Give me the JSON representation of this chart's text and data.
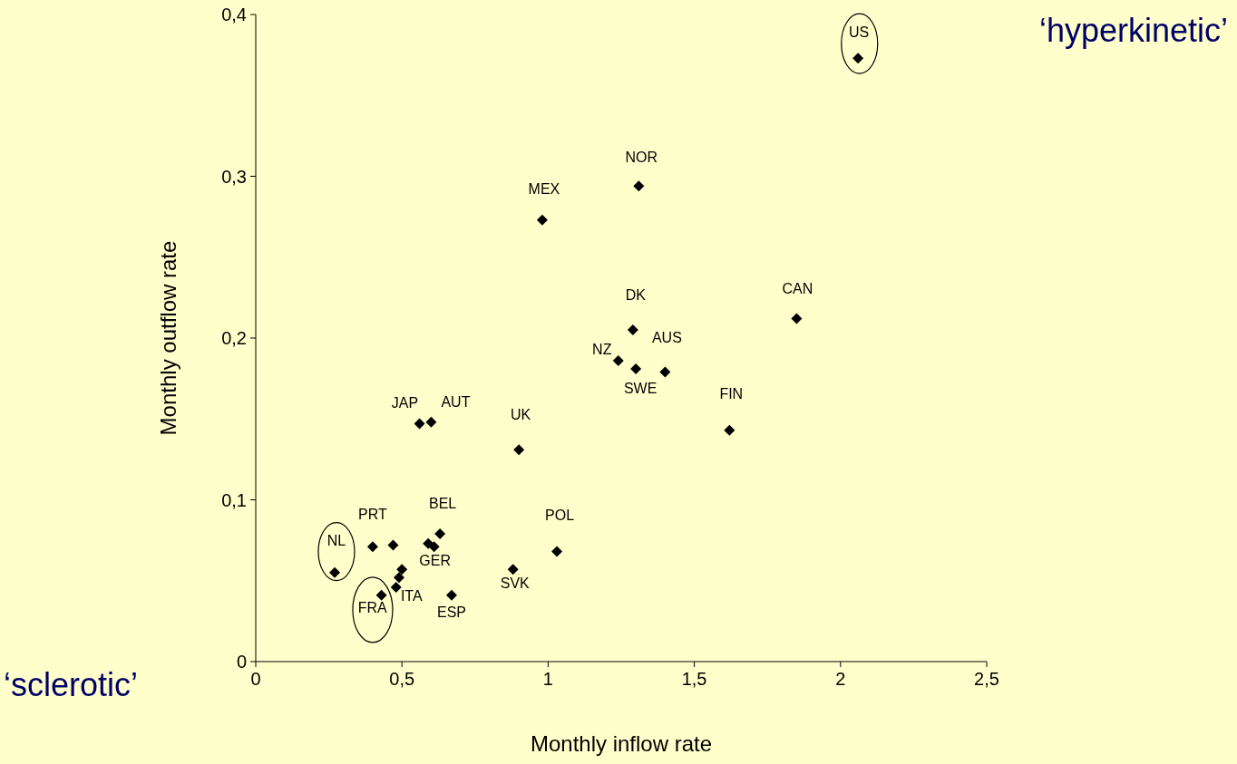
{
  "chart_data": {
    "type": "scatter",
    "xlabel": "Monthly inflow rate",
    "ylabel": "Monthly outflow rate",
    "xlim": [
      0,
      2.5
    ],
    "ylim": [
      0,
      0.4
    ],
    "xticks": [
      0,
      {
        "value": 0.5,
        "label": "0,5"
      },
      1,
      {
        "value": 1.5,
        "label": "1,5"
      },
      2,
      {
        "value": 2.5,
        "label": "2,5"
      }
    ],
    "yticks": [
      0,
      {
        "value": 0.1,
        "label": "0,1"
      },
      {
        "value": 0.2,
        "label": "0,2"
      },
      {
        "value": 0.3,
        "label": "0,3"
      },
      {
        "value": 0.4,
        "label": "0,4"
      }
    ],
    "marker": "diamond",
    "grid": false,
    "series": [
      {
        "color": "#000000",
        "x": [
          2.06,
          1.31,
          0.98,
          1.29,
          1.24,
          1.3,
          1.4,
          1.85,
          1.62,
          0.9,
          0.56,
          0.6,
          0.27,
          0.4,
          0.47,
          0.59,
          0.61,
          0.63,
          0.5,
          0.49,
          0.48,
          0.43,
          0.67,
          0.88,
          1.03
        ],
        "values": [
          0.373,
          0.294,
          0.273,
          0.205,
          0.186,
          0.181,
          0.179,
          0.212,
          0.143,
          0.131,
          0.147,
          0.148,
          0.055,
          0.071,
          0.072,
          0.073,
          0.071,
          0.079,
          0.057,
          0.052,
          0.046,
          0.041,
          0.041,
          0.057,
          0.068
        ]
      }
    ],
    "annotations": [
      "‘hyperkinetic’",
      "‘sclerotic’",
      {
        "text": "US",
        "x": 2.06,
        "y": 0.373
      },
      {
        "text": "NOR",
        "x": 1.31,
        "y": 0.294
      },
      {
        "text": "MEX",
        "x": 0.98,
        "y": 0.273
      },
      {
        "text": "DK",
        "x": 1.29,
        "y": 0.205
      },
      {
        "text": "CAN",
        "x": 1.85,
        "y": 0.212
      },
      {
        "text": "AUS",
        "x": 1.4,
        "y": 0.179
      },
      {
        "text": "NZ",
        "x": 1.24,
        "y": 0.186
      },
      {
        "text": "SWE",
        "x": 1.3,
        "y": 0.181
      },
      {
        "text": "FIN",
        "x": 1.62,
        "y": 0.143
      },
      {
        "text": "JAP",
        "x": 0.56,
        "y": 0.147
      },
      {
        "text": "AUT",
        "x": 0.6,
        "y": 0.148
      },
      {
        "text": "UK",
        "x": 0.9,
        "y": 0.131
      },
      {
        "text": "BEL",
        "x": 0.63,
        "y": 0.079
      },
      {
        "text": "PRT",
        "x": 0.4,
        "y": 0.071
      },
      {
        "text": "POL",
        "x": 1.03,
        "y": 0.068
      },
      {
        "text": "NL",
        "x": 0.27,
        "y": 0.055
      },
      {
        "text": "GER",
        "x": 0.61,
        "y": 0.071
      },
      {
        "text": "SVK",
        "x": 0.88,
        "y": 0.057
      },
      {
        "text": "ITA",
        "x": 0.48,
        "y": 0.046
      },
      {
        "text": "FRA",
        "x": 0.43,
        "y": 0.041
      },
      {
        "text": "ESP",
        "x": 0.67,
        "y": 0.041
      }
    ]
  }
}
